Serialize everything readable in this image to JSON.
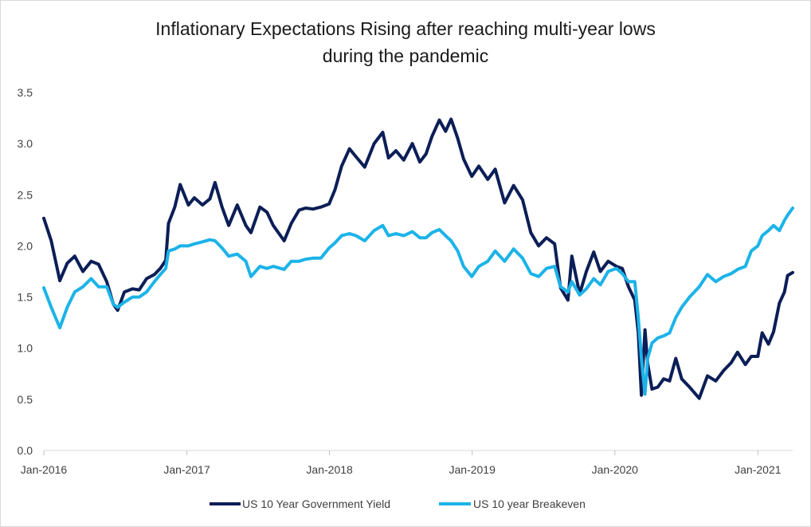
{
  "chart_data": {
    "type": "line",
    "title_lines": [
      "Inflationary Expectations Rising after reaching multi-year lows",
      "during the pandemic"
    ],
    "xlabel": "",
    "ylabel": "",
    "ylim": [
      0,
      3.5
    ],
    "yticks": [
      "0.0",
      "0.5",
      "1.0",
      "1.5",
      "2.0",
      "2.5",
      "3.0",
      "3.5"
    ],
    "xlim": [
      "2016-01-01",
      "2021-03-31"
    ],
    "xticks": [
      {
        "date": "2016-01-01",
        "label": "Jan-2016"
      },
      {
        "date": "2017-01-01",
        "label": "Jan-2017"
      },
      {
        "date": "2018-01-01",
        "label": "Jan-2018"
      },
      {
        "date": "2019-01-01",
        "label": "Jan-2019"
      },
      {
        "date": "2020-01-01",
        "label": "Jan-2020"
      },
      {
        "date": "2021-01-01",
        "label": "Jan-2021"
      }
    ],
    "grid": false,
    "legend_position": "bottom",
    "series": [
      {
        "name": "US 10 Year Government Yield",
        "color": "#0c1e57",
        "points": [
          [
            "2016-01-01",
            2.27
          ],
          [
            "2016-01-20",
            2.05
          ],
          [
            "2016-02-11",
            1.66
          ],
          [
            "2016-03-01",
            1.83
          ],
          [
            "2016-03-20",
            1.9
          ],
          [
            "2016-04-10",
            1.75
          ],
          [
            "2016-05-01",
            1.85
          ],
          [
            "2016-05-20",
            1.82
          ],
          [
            "2016-06-10",
            1.65
          ],
          [
            "2016-06-27",
            1.43
          ],
          [
            "2016-07-08",
            1.37
          ],
          [
            "2016-07-25",
            1.55
          ],
          [
            "2016-08-15",
            1.58
          ],
          [
            "2016-09-01",
            1.57
          ],
          [
            "2016-09-20",
            1.68
          ],
          [
            "2016-10-10",
            1.72
          ],
          [
            "2016-10-25",
            1.78
          ],
          [
            "2016-11-08",
            1.86
          ],
          [
            "2016-11-15",
            2.22
          ],
          [
            "2016-12-01",
            2.38
          ],
          [
            "2016-12-15",
            2.6
          ],
          [
            "2017-01-05",
            2.4
          ],
          [
            "2017-01-20",
            2.47
          ],
          [
            "2017-02-10",
            2.4
          ],
          [
            "2017-03-01",
            2.46
          ],
          [
            "2017-03-14",
            2.62
          ],
          [
            "2017-04-01",
            2.38
          ],
          [
            "2017-04-18",
            2.2
          ],
          [
            "2017-05-10",
            2.4
          ],
          [
            "2017-06-01",
            2.2
          ],
          [
            "2017-06-14",
            2.13
          ],
          [
            "2017-07-07",
            2.38
          ],
          [
            "2017-07-25",
            2.33
          ],
          [
            "2017-08-10",
            2.2
          ],
          [
            "2017-09-07",
            2.05
          ],
          [
            "2017-09-25",
            2.22
          ],
          [
            "2017-10-15",
            2.35
          ],
          [
            "2017-11-01",
            2.37
          ],
          [
            "2017-11-20",
            2.36
          ],
          [
            "2017-12-10",
            2.38
          ],
          [
            "2017-12-31",
            2.41
          ],
          [
            "2018-01-15",
            2.55
          ],
          [
            "2018-02-01",
            2.78
          ],
          [
            "2018-02-21",
            2.95
          ],
          [
            "2018-03-10",
            2.87
          ],
          [
            "2018-04-01",
            2.77
          ],
          [
            "2018-04-25",
            3.0
          ],
          [
            "2018-05-17",
            3.11
          ],
          [
            "2018-06-01",
            2.86
          ],
          [
            "2018-06-20",
            2.93
          ],
          [
            "2018-07-10",
            2.84
          ],
          [
            "2018-08-01",
            3.0
          ],
          [
            "2018-08-20",
            2.82
          ],
          [
            "2018-09-05",
            2.9
          ],
          [
            "2018-09-20",
            3.07
          ],
          [
            "2018-10-09",
            3.23
          ],
          [
            "2018-10-25",
            3.12
          ],
          [
            "2018-11-08",
            3.24
          ],
          [
            "2018-11-25",
            3.05
          ],
          [
            "2018-12-10",
            2.85
          ],
          [
            "2018-12-31",
            2.68
          ],
          [
            "2019-01-18",
            2.78
          ],
          [
            "2019-02-10",
            2.65
          ],
          [
            "2019-03-01",
            2.75
          ],
          [
            "2019-03-25",
            2.42
          ],
          [
            "2019-04-17",
            2.59
          ],
          [
            "2019-05-10",
            2.45
          ],
          [
            "2019-05-31",
            2.13
          ],
          [
            "2019-06-20",
            2.0
          ],
          [
            "2019-07-10",
            2.08
          ],
          [
            "2019-07-31",
            2.02
          ],
          [
            "2019-08-15",
            1.59
          ],
          [
            "2019-09-03",
            1.47
          ],
          [
            "2019-09-13",
            1.9
          ],
          [
            "2019-10-03",
            1.53
          ],
          [
            "2019-10-20",
            1.75
          ],
          [
            "2019-11-08",
            1.94
          ],
          [
            "2019-11-25",
            1.75
          ],
          [
            "2019-12-15",
            1.85
          ],
          [
            "2020-01-05",
            1.8
          ],
          [
            "2020-01-20",
            1.78
          ],
          [
            "2020-02-05",
            1.6
          ],
          [
            "2020-02-21",
            1.47
          ],
          [
            "2020-03-01",
            1.15
          ],
          [
            "2020-03-09",
            0.54
          ],
          [
            "2020-03-18",
            1.18
          ],
          [
            "2020-03-25",
            0.85
          ],
          [
            "2020-04-05",
            0.6
          ],
          [
            "2020-04-20",
            0.62
          ],
          [
            "2020-05-05",
            0.7
          ],
          [
            "2020-05-20",
            0.68
          ],
          [
            "2020-06-05",
            0.9
          ],
          [
            "2020-06-20",
            0.7
          ],
          [
            "2020-07-10",
            0.62
          ],
          [
            "2020-08-04",
            0.51
          ],
          [
            "2020-08-25",
            0.73
          ],
          [
            "2020-09-15",
            0.68
          ],
          [
            "2020-10-05",
            0.78
          ],
          [
            "2020-10-25",
            0.86
          ],
          [
            "2020-11-10",
            0.96
          ],
          [
            "2020-11-30",
            0.84
          ],
          [
            "2020-12-15",
            0.92
          ],
          [
            "2021-01-01",
            0.92
          ],
          [
            "2021-01-12",
            1.15
          ],
          [
            "2021-01-28",
            1.04
          ],
          [
            "2021-02-10",
            1.16
          ],
          [
            "2021-02-25",
            1.44
          ],
          [
            "2021-03-10",
            1.55
          ],
          [
            "2021-03-18",
            1.71
          ],
          [
            "2021-03-31",
            1.74
          ]
        ]
      },
      {
        "name": "US 10 year Breakeven",
        "color": "#1cb3e8",
        "points": [
          [
            "2016-01-01",
            1.59
          ],
          [
            "2016-01-20",
            1.4
          ],
          [
            "2016-02-11",
            1.2
          ],
          [
            "2016-03-01",
            1.4
          ],
          [
            "2016-03-20",
            1.55
          ],
          [
            "2016-04-10",
            1.6
          ],
          [
            "2016-05-01",
            1.68
          ],
          [
            "2016-05-20",
            1.6
          ],
          [
            "2016-06-10",
            1.6
          ],
          [
            "2016-06-27",
            1.43
          ],
          [
            "2016-07-08",
            1.4
          ],
          [
            "2016-07-25",
            1.45
          ],
          [
            "2016-08-15",
            1.5
          ],
          [
            "2016-09-01",
            1.5
          ],
          [
            "2016-09-20",
            1.55
          ],
          [
            "2016-10-10",
            1.65
          ],
          [
            "2016-10-25",
            1.72
          ],
          [
            "2016-11-08",
            1.78
          ],
          [
            "2016-11-15",
            1.95
          ],
          [
            "2016-12-01",
            1.97
          ],
          [
            "2016-12-15",
            2.0
          ],
          [
            "2017-01-05",
            2.0
          ],
          [
            "2017-01-20",
            2.02
          ],
          [
            "2017-02-10",
            2.04
          ],
          [
            "2017-03-01",
            2.06
          ],
          [
            "2017-03-14",
            2.05
          ],
          [
            "2017-04-01",
            1.98
          ],
          [
            "2017-04-18",
            1.9
          ],
          [
            "2017-05-10",
            1.92
          ],
          [
            "2017-06-01",
            1.85
          ],
          [
            "2017-06-14",
            1.7
          ],
          [
            "2017-07-07",
            1.8
          ],
          [
            "2017-07-25",
            1.78
          ],
          [
            "2017-08-10",
            1.8
          ],
          [
            "2017-09-07",
            1.77
          ],
          [
            "2017-09-25",
            1.85
          ],
          [
            "2017-10-15",
            1.85
          ],
          [
            "2017-11-01",
            1.87
          ],
          [
            "2017-11-20",
            1.88
          ],
          [
            "2017-12-10",
            1.88
          ],
          [
            "2017-12-31",
            1.98
          ],
          [
            "2018-01-15",
            2.03
          ],
          [
            "2018-02-01",
            2.1
          ],
          [
            "2018-02-21",
            2.12
          ],
          [
            "2018-03-10",
            2.1
          ],
          [
            "2018-04-01",
            2.05
          ],
          [
            "2018-04-25",
            2.15
          ],
          [
            "2018-05-17",
            2.2
          ],
          [
            "2018-06-01",
            2.1
          ],
          [
            "2018-06-20",
            2.12
          ],
          [
            "2018-07-10",
            2.1
          ],
          [
            "2018-08-01",
            2.14
          ],
          [
            "2018-08-20",
            2.08
          ],
          [
            "2018-09-05",
            2.08
          ],
          [
            "2018-09-20",
            2.13
          ],
          [
            "2018-10-09",
            2.16
          ],
          [
            "2018-10-25",
            2.1
          ],
          [
            "2018-11-08",
            2.05
          ],
          [
            "2018-11-25",
            1.95
          ],
          [
            "2018-12-10",
            1.8
          ],
          [
            "2018-12-31",
            1.7
          ],
          [
            "2019-01-18",
            1.8
          ],
          [
            "2019-02-10",
            1.85
          ],
          [
            "2019-03-01",
            1.95
          ],
          [
            "2019-03-25",
            1.85
          ],
          [
            "2019-04-17",
            1.97
          ],
          [
            "2019-05-10",
            1.88
          ],
          [
            "2019-05-31",
            1.73
          ],
          [
            "2019-06-20",
            1.7
          ],
          [
            "2019-07-10",
            1.78
          ],
          [
            "2019-07-31",
            1.8
          ],
          [
            "2019-08-15",
            1.6
          ],
          [
            "2019-09-03",
            1.55
          ],
          [
            "2019-09-13",
            1.65
          ],
          [
            "2019-10-03",
            1.52
          ],
          [
            "2019-10-20",
            1.58
          ],
          [
            "2019-11-08",
            1.68
          ],
          [
            "2019-11-25",
            1.62
          ],
          [
            "2019-12-15",
            1.75
          ],
          [
            "2020-01-05",
            1.78
          ],
          [
            "2020-01-20",
            1.73
          ],
          [
            "2020-02-05",
            1.65
          ],
          [
            "2020-02-21",
            1.65
          ],
          [
            "2020-03-01",
            1.3
          ],
          [
            "2020-03-09",
            0.9
          ],
          [
            "2020-03-18",
            0.55
          ],
          [
            "2020-03-25",
            0.9
          ],
          [
            "2020-04-05",
            1.05
          ],
          [
            "2020-04-20",
            1.1
          ],
          [
            "2020-05-05",
            1.12
          ],
          [
            "2020-05-20",
            1.15
          ],
          [
            "2020-06-05",
            1.3
          ],
          [
            "2020-06-20",
            1.4
          ],
          [
            "2020-07-10",
            1.5
          ],
          [
            "2020-08-04",
            1.6
          ],
          [
            "2020-08-25",
            1.72
          ],
          [
            "2020-09-15",
            1.65
          ],
          [
            "2020-10-05",
            1.7
          ],
          [
            "2020-10-25",
            1.73
          ],
          [
            "2020-11-10",
            1.77
          ],
          [
            "2020-11-30",
            1.8
          ],
          [
            "2020-12-15",
            1.95
          ],
          [
            "2021-01-01",
            2.0
          ],
          [
            "2021-01-12",
            2.1
          ],
          [
            "2021-01-28",
            2.15
          ],
          [
            "2021-02-10",
            2.2
          ],
          [
            "2021-02-25",
            2.15
          ],
          [
            "2021-03-10",
            2.25
          ],
          [
            "2021-03-18",
            2.3
          ],
          [
            "2021-03-31",
            2.37
          ]
        ]
      }
    ]
  }
}
